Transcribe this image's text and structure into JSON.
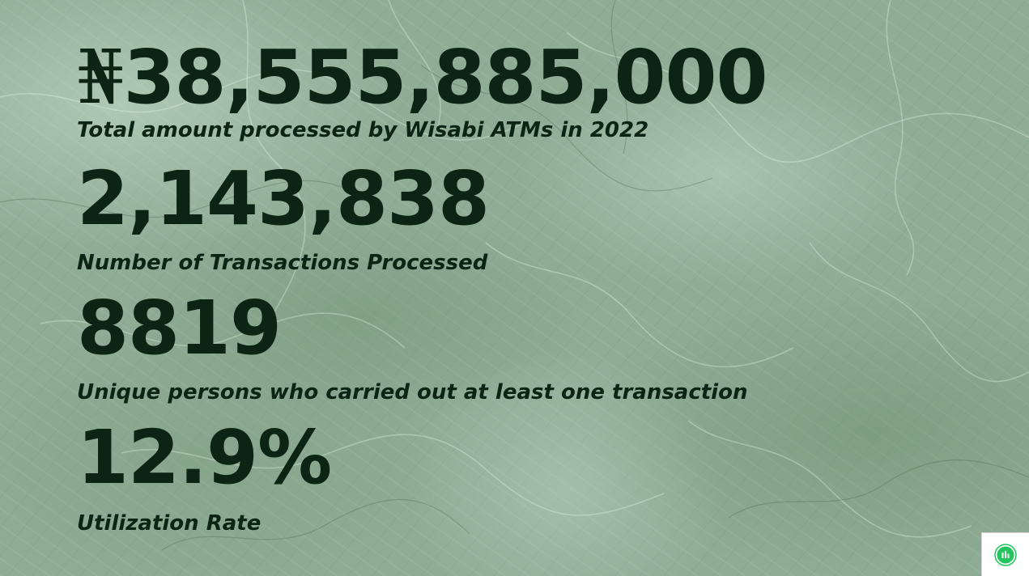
{
  "stats": [
    {
      "currency_symbol": "₦",
      "value": "38,555,885,000",
      "label": "Total amount processed by Wisabi ATMs in 2022"
    },
    {
      "value": "2,143,838",
      "label": "Number of Transactions Processed"
    },
    {
      "value": "8819",
      "label": "Unique persons who carried out at least one transaction"
    },
    {
      "value": "12.9%",
      "label": "Utilization Rate"
    }
  ],
  "widget": {
    "icon": "bar-chart-icon",
    "accent_color": "#22c55e"
  },
  "colors": {
    "text": "#0c2413",
    "background": "#8fac95"
  }
}
